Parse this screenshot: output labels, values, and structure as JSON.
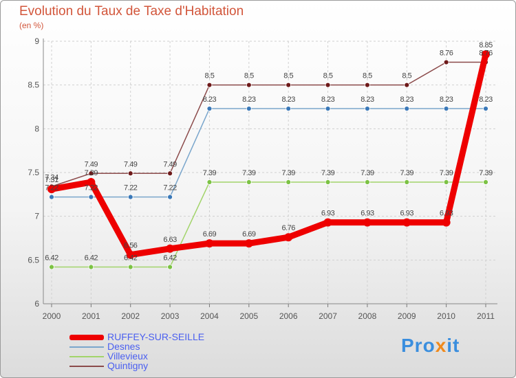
{
  "chart_data": {
    "type": "line",
    "title": "Evolution du Taux de Taxe d'Habitation",
    "subtitle": "(en %)",
    "xlabel": "",
    "ylabel": "",
    "categories": [
      "2000",
      "2001",
      "2002",
      "2003",
      "2004",
      "2005",
      "2006",
      "2007",
      "2008",
      "2009",
      "2010",
      "2011"
    ],
    "ylim": [
      6,
      9
    ],
    "yticks": [
      6,
      6.5,
      7,
      7.5,
      8,
      8.5,
      9
    ],
    "ytick_labels": [
      "6",
      "6.5",
      "7",
      "7.5",
      "8",
      "8.5",
      "9"
    ],
    "series": [
      {
        "name": "Quintigny",
        "color": "#8b4a4a",
        "marker": "#6e1a1a",
        "values": [
          7.34,
          7.49,
          7.49,
          7.49,
          8.5,
          8.5,
          8.5,
          8.5,
          8.5,
          8.5,
          8.76,
          8.76
        ],
        "labels": [
          "7.34",
          "7.49",
          "7.49",
          "7.49",
          "8.5",
          "8.5",
          "8.5",
          "8.5",
          "8.5",
          "8.5",
          "8.76",
          "8.76"
        ]
      },
      {
        "name": "Desnes",
        "color": "#7aa6cc",
        "marker": "#3a78b8",
        "values": [
          7.22,
          7.22,
          7.22,
          7.22,
          8.23,
          8.23,
          8.23,
          8.23,
          8.23,
          8.23,
          8.23,
          8.23
        ],
        "labels": [
          "7.22",
          "7.22",
          "7.22",
          "7.22",
          "8.23",
          "8.23",
          "8.23",
          "8.23",
          "8.23",
          "8.23",
          "8.23",
          "8.23"
        ]
      },
      {
        "name": "Villevieux",
        "color": "#a2d46a",
        "marker": "#7cc244",
        "values": [
          6.42,
          6.42,
          6.42,
          6.42,
          7.39,
          7.39,
          7.39,
          7.39,
          7.39,
          7.39,
          7.39,
          7.39
        ],
        "labels": [
          "6.42",
          "6.42",
          "6.42",
          "6.42",
          "7.39",
          "7.39",
          "7.39",
          "7.39",
          "7.39",
          "7.39",
          "7.39",
          "7.39"
        ]
      },
      {
        "name": "RUFFEY-SUR-SEILLE",
        "color": "#ee0000",
        "marker": "#ee0000",
        "bold": true,
        "values": [
          7.31,
          7.39,
          6.56,
          6.63,
          6.69,
          6.69,
          6.76,
          6.93,
          6.93,
          6.93,
          6.93,
          8.85
        ],
        "labels": [
          "7.31",
          "7.39",
          "6.56",
          "6.63",
          "6.69",
          "6.69",
          "6.76",
          "6.93",
          "6.93",
          "6.93",
          "6.93",
          "8.85"
        ]
      }
    ],
    "legend": [
      "RUFFEY-SUR-SEILLE",
      "Desnes",
      "Villevieux",
      "Quintigny"
    ],
    "legend_colors": [
      "#ee0000",
      "#7aa6cc",
      "#a2d46a",
      "#8b4a4a"
    ]
  },
  "logo": {
    "p1": "Pro",
    "x": "x",
    "it": "it",
    "i": "i"
  }
}
